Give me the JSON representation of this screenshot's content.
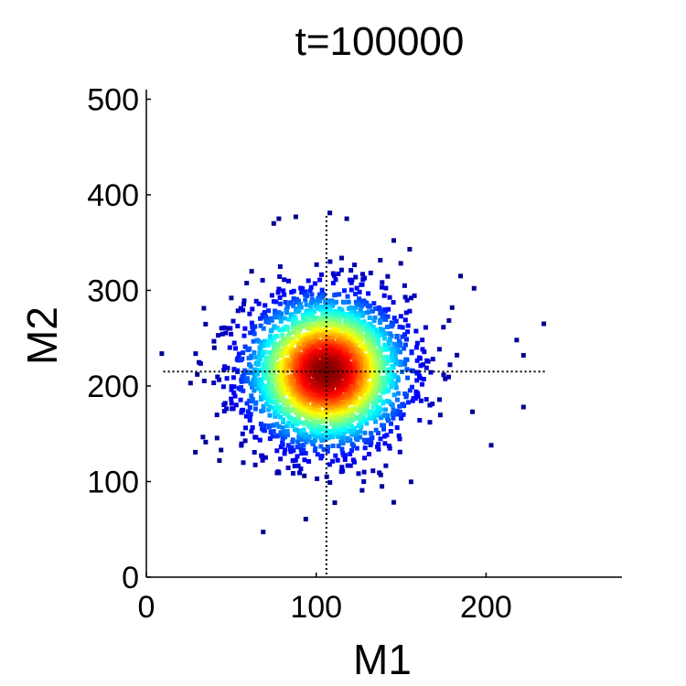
{
  "chart_data": {
    "type": "scatter",
    "title": "t=100000",
    "xlabel": "M1",
    "ylabel": "M2",
    "xlim": [
      0,
      280
    ],
    "ylim": [
      0,
      510
    ],
    "xticks": [
      0,
      100,
      200
    ],
    "yticks": [
      0,
      100,
      200,
      300,
      400,
      500
    ],
    "grid": false,
    "legend": "none",
    "reference_lines": {
      "x": 106,
      "y": 215
    },
    "density_cluster": {
      "center": [
        106,
        215
      ],
      "std": [
        24,
        40
      ],
      "approx_count": 3200,
      "outlier_points": [
        [
          75,
          370
        ],
        [
          78,
          375
        ],
        [
          88,
          377
        ],
        [
          108,
          381
        ],
        [
          118,
          375
        ],
        [
          155,
          343
        ],
        [
          185,
          315
        ],
        [
          234,
          265
        ],
        [
          218,
          248
        ],
        [
          222,
          232
        ],
        [
          222,
          178
        ],
        [
          30,
          212
        ],
        [
          26,
          203
        ],
        [
          203,
          138
        ],
        [
          43,
          122
        ],
        [
          44,
          133
        ],
        [
          77,
          109
        ],
        [
          138,
          107
        ],
        [
          93,
          106
        ],
        [
          167,
          180
        ],
        [
          192,
          173
        ],
        [
          180,
          282
        ],
        [
          62,
          320
        ],
        [
          50,
          292
        ],
        [
          40,
          240
        ]
      ]
    },
    "colormap": [
      "#00008f",
      "#0000ff",
      "#0080ff",
      "#00ffff",
      "#80ff80",
      "#ffff00",
      "#ff8000",
      "#ff0000",
      "#800000"
    ]
  }
}
